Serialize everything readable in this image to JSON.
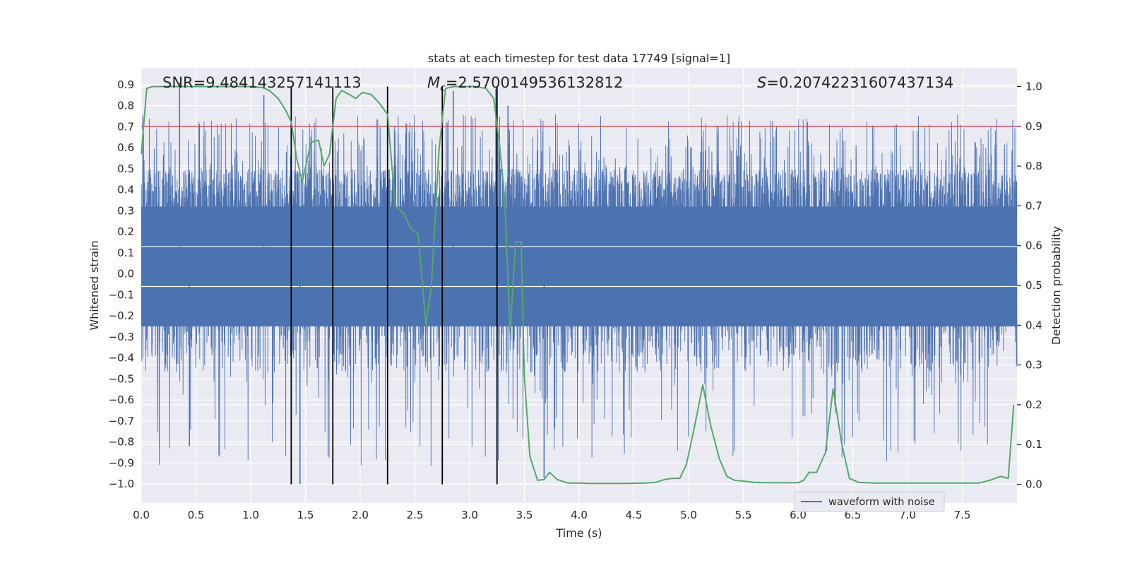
{
  "chart_data": {
    "type": "line",
    "title": "stats at each timestep for test data 17749 [signal=1]",
    "xlabel": "Time (s)",
    "ylabel_left": "Whitened strain",
    "ylabel_right": "Detection probability",
    "xlim": [
      0.0,
      8.0
    ],
    "ylim_left": [
      -1.09,
      0.98
    ],
    "ylim_right": [
      -0.047,
      1.047
    ],
    "x_ticks": [
      "0.0",
      "0.5",
      "1.0",
      "1.5",
      "2.0",
      "2.5",
      "3.0",
      "3.5",
      "4.0",
      "4.5",
      "5.0",
      "5.5",
      "6.0",
      "6.5",
      "7.0",
      "7.5"
    ],
    "y_left_ticks": [
      "0.9",
      "0.8",
      "0.7",
      "0.6",
      "0.5",
      "0.4",
      "0.3",
      "0.2",
      "0.1",
      "0.0",
      "−0.1",
      "−0.2",
      "−0.3",
      "−0.4",
      "−0.5",
      "−0.6",
      "−0.7",
      "−0.8",
      "−0.9",
      "−1.0"
    ],
    "y_right_ticks": [
      "1.0",
      "0.9",
      "0.8",
      "0.7",
      "0.6",
      "0.5",
      "0.4",
      "0.3",
      "0.2",
      "0.1",
      "0.0"
    ],
    "grid": true,
    "legend_placement": "lower-right",
    "threshold": {
      "value": 0.9,
      "axis": "right",
      "color": "#c44e52"
    },
    "vertical_markers": [
      1.37,
      1.75,
      2.25,
      2.75,
      3.25
    ],
    "annotations": {
      "snr": "SNR=9.484143257141113",
      "mc_symbol": "M",
      "mc_subscript": "c",
      "mc_value": "=2.5700149536132812",
      "s_symbol": "S",
      "s_value": "=0.20742231607437134"
    },
    "series": [
      {
        "name": "waveform with noise",
        "axis": "left",
        "color": "#4c72b0",
        "style": "dense noisy signal",
        "core_range": [
          -0.25,
          0.32
        ],
        "envelope": [
          -1.0,
          0.92
        ],
        "peaks": [
          [
            0.35,
            0.91
          ],
          [
            0.44,
            -0.82
          ],
          [
            1.12,
            0.85
          ],
          [
            1.45,
            -1.0
          ],
          [
            3.24,
            0.88
          ],
          [
            3.35,
            0.8
          ],
          [
            2.85,
            0.87
          ],
          [
            3.68,
            -0.97
          ]
        ]
      },
      {
        "name": "detection probability",
        "axis": "right",
        "color": "#55a868",
        "x": [
          0.0,
          0.05,
          0.1,
          0.2,
          0.4,
          0.6,
          0.8,
          1.0,
          1.1,
          1.17,
          1.25,
          1.32,
          1.37,
          1.42,
          1.47,
          1.55,
          1.62,
          1.67,
          1.72,
          1.78,
          1.83,
          1.9,
          1.96,
          2.02,
          2.1,
          2.17,
          2.25,
          2.32,
          2.4,
          2.47,
          2.53,
          2.6,
          2.65,
          2.72,
          2.78,
          2.85,
          2.95,
          3.05,
          3.15,
          3.22,
          3.27,
          3.32,
          3.37,
          3.42,
          3.47,
          3.5,
          3.55,
          3.62,
          3.68,
          3.73,
          3.8,
          3.9,
          4.0,
          4.1,
          4.2,
          4.4,
          4.6,
          4.7,
          4.78,
          4.85,
          4.92,
          4.98,
          5.05,
          5.13,
          5.2,
          5.28,
          5.35,
          5.42,
          5.5,
          5.6,
          5.7,
          5.8,
          5.9,
          6.0,
          6.05,
          6.1,
          6.17,
          6.25,
          6.32,
          6.4,
          6.47,
          6.55,
          6.7,
          7.0,
          7.3,
          7.5,
          7.65,
          7.75,
          7.85,
          7.92,
          7.97
        ],
        "values": [
          0.83,
          0.995,
          1.0,
          1.0,
          1.0,
          1.0,
          1.0,
          1.0,
          0.998,
          0.99,
          0.97,
          0.94,
          0.91,
          0.82,
          0.76,
          0.86,
          0.865,
          0.8,
          0.83,
          0.97,
          0.99,
          0.98,
          0.97,
          0.985,
          0.98,
          0.96,
          0.93,
          0.7,
          0.68,
          0.64,
          0.63,
          0.4,
          0.5,
          0.84,
          0.995,
          1.0,
          1.0,
          1.0,
          0.995,
          0.97,
          0.86,
          0.72,
          0.38,
          0.61,
          0.61,
          0.27,
          0.07,
          0.01,
          0.012,
          0.03,
          0.012,
          0.003,
          0.003,
          0.002,
          0.002,
          0.002,
          0.003,
          0.005,
          0.012,
          0.015,
          0.015,
          0.05,
          0.14,
          0.25,
          0.15,
          0.065,
          0.02,
          0.01,
          0.008,
          0.005,
          0.004,
          0.004,
          0.004,
          0.004,
          0.01,
          0.03,
          0.03,
          0.08,
          0.24,
          0.1,
          0.015,
          0.005,
          0.003,
          0.003,
          0.003,
          0.003,
          0.003,
          0.01,
          0.02,
          0.015,
          0.2
        ]
      }
    ]
  },
  "legend": {
    "entry": "waveform with noise"
  }
}
